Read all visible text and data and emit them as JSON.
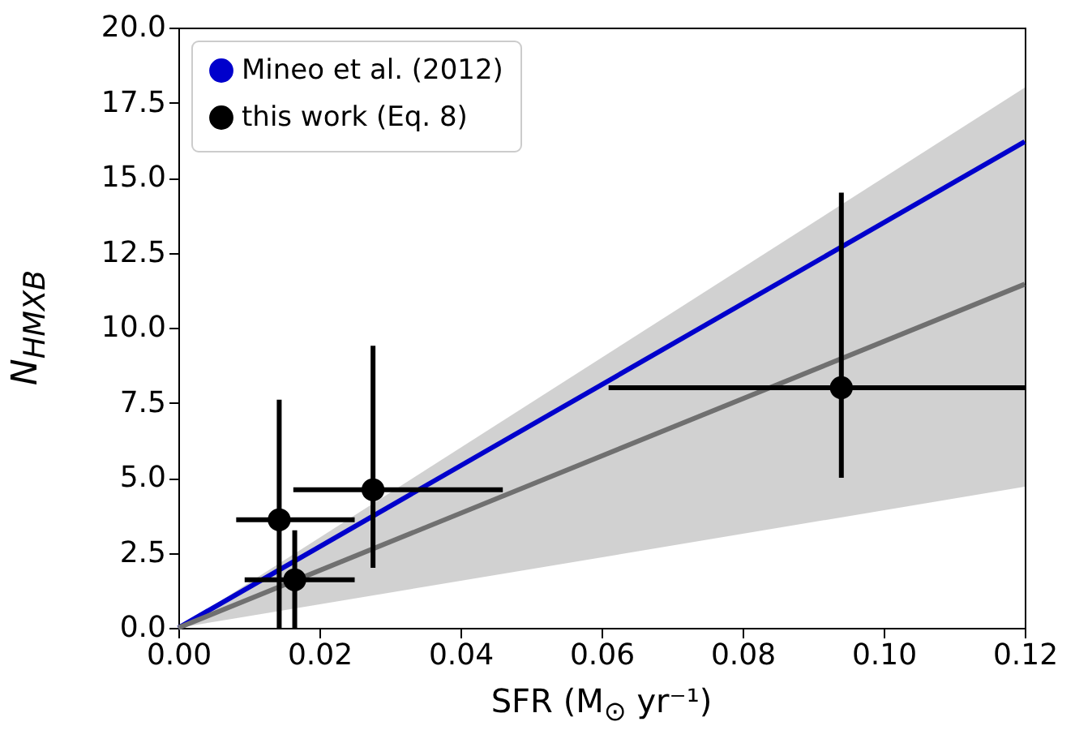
{
  "chart_data": {
    "type": "scatter",
    "xlabel": "SFR (M$_{⊙}$ yr⁻¹)",
    "ylabel": "N$_{HMXB}$",
    "xlim": [
      0,
      0.12
    ],
    "xticks": [
      {
        "value": 0,
        "label": "0.00"
      },
      {
        "value": 0.02,
        "label": "0.02"
      },
      {
        "value": 0.04,
        "label": "0.04"
      },
      {
        "value": 0.06,
        "label": "0.06"
      },
      {
        "value": 0.08,
        "label": "0.08"
      },
      {
        "value": 0.1,
        "label": "0.10"
      },
      {
        "value": 0.12,
        "label": "0.12"
      }
    ],
    "ylim": [
      0,
      20
    ],
    "yticks": [
      {
        "value": 0,
        "label": "0.0"
      },
      {
        "value": 2.5,
        "label": "2.5"
      },
      {
        "value": 5,
        "label": "5.0"
      },
      {
        "value": 7.5,
        "label": "7.5"
      },
      {
        "value": 10,
        "label": "10.0"
      },
      {
        "value": 12.5,
        "label": "12.5"
      },
      {
        "value": 15,
        "label": "15.0"
      },
      {
        "value": 17.5,
        "label": "17.5"
      },
      {
        "value": 20,
        "label": "20.0"
      }
    ],
    "grid": false,
    "legend": "top left",
    "series": [
      {
        "name": "Mineo et al. (2012)",
        "type": "line",
        "color": "#0000cc",
        "x": [
          0,
          0.12
        ],
        "values": [
          0,
          16.2
        ]
      },
      {
        "type": "line",
        "color": "#707070",
        "x": [
          0,
          0.12
        ],
        "values": [
          0,
          11.45
        ],
        "lower": [
          0,
          4.7
        ],
        "upper": [
          0,
          18.0
        ]
      },
      {
        "name": "this work (Eq. 8)",
        "marker": "circle",
        "color": "#000000",
        "x": [
          0.0143,
          0.0165,
          0.0276,
          0.094
        ],
        "values": [
          3.6,
          1.6,
          4.6,
          8.0
        ],
        "errors": [
          [
            0,
            7.6
          ],
          [
            0,
            3.25
          ],
          [
            2.0,
            9.4
          ],
          [
            5.0,
            14.5
          ]
        ],
        "xerrors": [
          [
            0.0082,
            0.025
          ],
          [
            0.0094,
            0.025
          ],
          [
            0.0163,
            0.046
          ],
          [
            0.061,
            0.12
          ]
        ]
      }
    ]
  }
}
